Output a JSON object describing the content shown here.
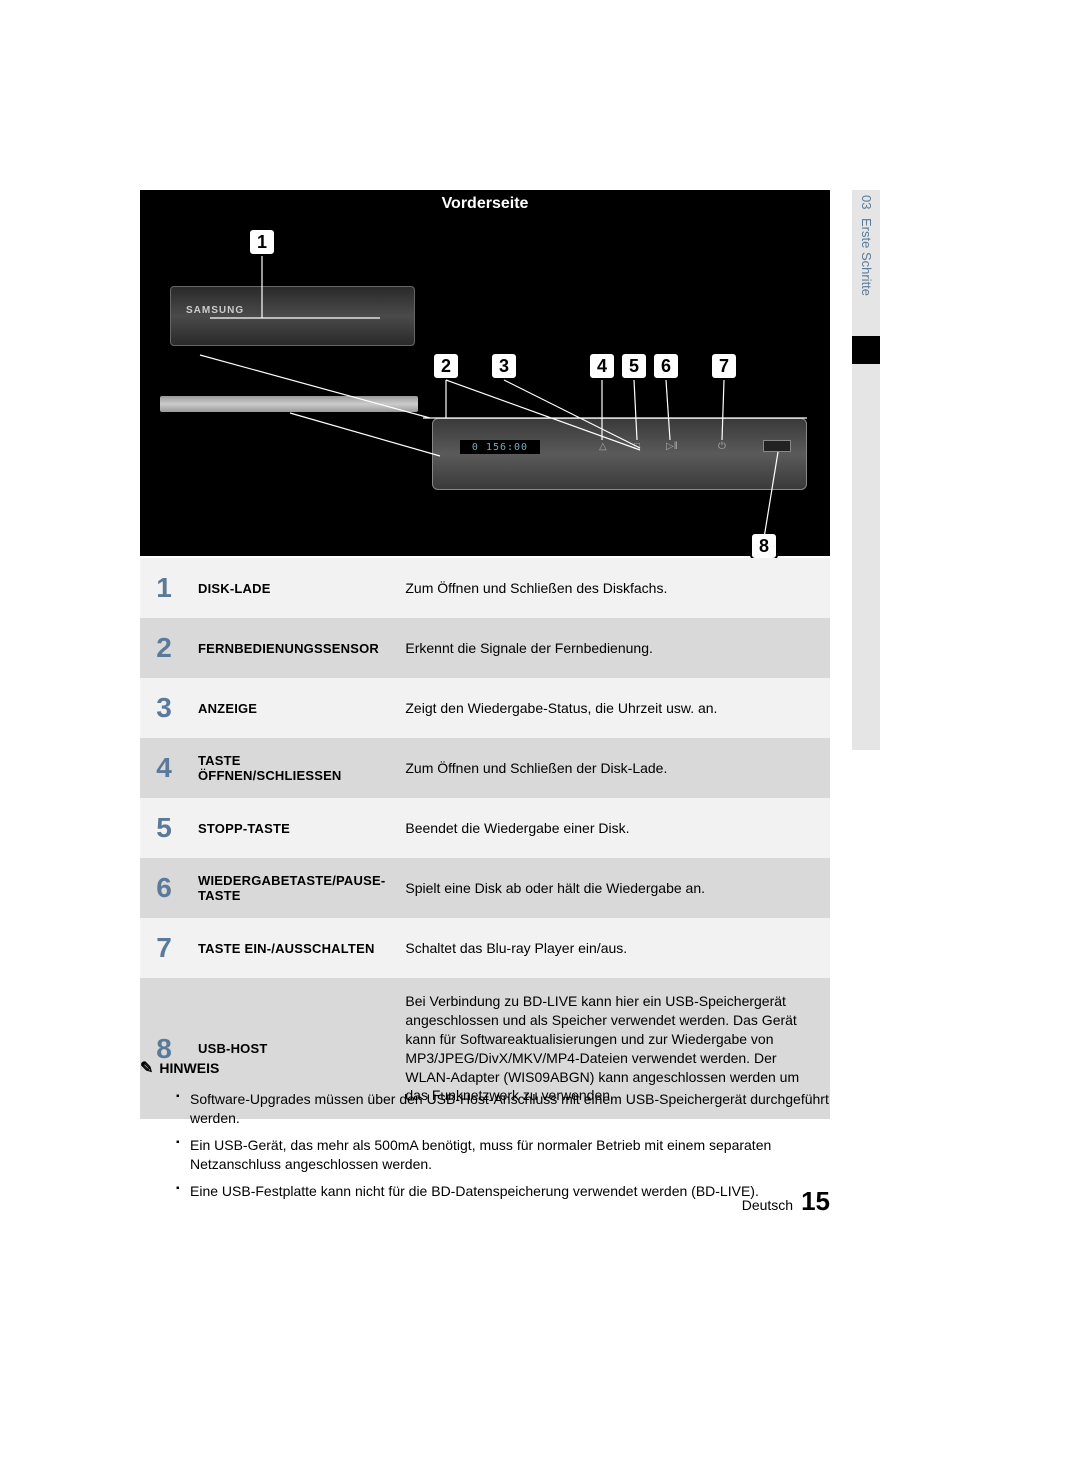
{
  "header": {
    "title": "Vorderseite"
  },
  "side_tab": {
    "chapter": "03",
    "title": "Erste Schritte"
  },
  "display_time": "0 156:00",
  "brand": "SAMSUNG",
  "callouts": {
    "c1": "1",
    "c2": "2",
    "c3": "3",
    "c4": "4",
    "c5": "5",
    "c6": "6",
    "c7": "7",
    "c8": "8"
  },
  "detail_icons": {
    "i1": "△",
    "i2": "□",
    "i3": "▷‖",
    "i4": "⏻"
  },
  "parts": [
    {
      "num": "1",
      "label": "DISK-LADE",
      "desc": "Zum Öffnen und Schließen des Diskfachs."
    },
    {
      "num": "2",
      "label": "FERNBEDIENUNGSSENSOR",
      "desc": "Erkennt die Signale der Fernbedienung."
    },
    {
      "num": "3",
      "label": "ANZEIGE",
      "desc": "Zeigt den Wiedergabe-Status, die Uhrzeit usw. an."
    },
    {
      "num": "4",
      "label": "TASTE ÖFFNEN/SCHLIESSEN",
      "desc": "Zum Öffnen und Schließen der Disk-Lade."
    },
    {
      "num": "5",
      "label": "STOPP-TASTE",
      "desc": "Beendet die Wiedergabe einer Disk."
    },
    {
      "num": "6",
      "label": "WIEDERGABETASTE/PAUSE-TASTE",
      "desc": "Spielt eine Disk ab oder hält die Wiedergabe an."
    },
    {
      "num": "7",
      "label": "TASTE EIN-/AUSSCHALTEN",
      "desc": "Schaltet das Blu-ray Player ein/aus."
    },
    {
      "num": "8",
      "label": "USB-HOST",
      "desc": "Bei Verbindung zu BD-LIVE kann hier ein USB-Speichergerät angeschlossen und als Speicher verwendet werden. Das Gerät kann für Softwareaktualisierungen und zur Wiedergabe von MP3/JPEG/DivX/MKV/MP4-Dateien verwendet werden. Der WLAN-Adapter (WIS09ABGN) kann angeschlossen werden um das Funknetzwerk zu verwenden."
    }
  ],
  "note": {
    "heading": "HINWEIS",
    "items": [
      "Software-Upgrades müssen über den USB-Host-Anschluss mit einem USB-Speichergerät durchgeführt werden.",
      "Ein USB-Gerät, das mehr als 500mA benötigt, muss für normaler Betrieb mit einem separaten Netzanschluss angeschlossen werden.",
      "Eine USB-Festplatte kann nicht für die BD-Datenspeicherung verwendet werden (BD-LIVE)."
    ]
  },
  "footer": {
    "lang": "Deutsch",
    "page": "15"
  },
  "colors": {
    "accent": "#5b7a99",
    "band_light": "#f2f2f2",
    "band_dark": "#d9d9d9"
  }
}
